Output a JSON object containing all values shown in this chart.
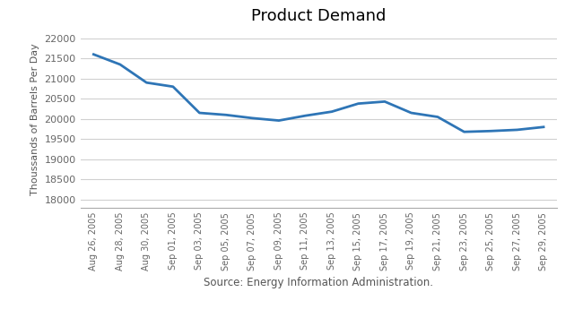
{
  "title": "Product Demand",
  "xlabel": "Source: Energy Information Administration.",
  "ylabel": "Thoussands of Barrels Per Day",
  "line_color": "#2E75B6",
  "line_width": 2.0,
  "background_color": "#ffffff",
  "grid_color": "#d0d0d0",
  "ylim": [
    17800,
    22200
  ],
  "yticks": [
    18000,
    18500,
    19000,
    19500,
    20000,
    20500,
    21000,
    21500,
    22000
  ],
  "x_labels": [
    "Aug 26, 2005",
    "Aug 28, 2005",
    "Aug 30, 2005",
    "Sep 01, 2005",
    "Sep 03, 2005",
    "Sep 05, 2005",
    "Sep 07, 2005",
    "Sep 09, 2005",
    "Sep 11, 2005",
    "Sep 13, 2005",
    "Sep 15, 2005",
    "Sep 17, 2005",
    "Sep 19, 2005",
    "Sep 21, 2005",
    "Sep 23, 2005",
    "Sep 25, 2005",
    "Sep 27, 2005",
    "Sep 29, 2005"
  ],
  "y_values": [
    21600,
    21350,
    20900,
    20800,
    20150,
    20100,
    20020,
    19960,
    20080,
    20180,
    20380,
    20430,
    20150,
    20050,
    19680,
    19700,
    19730,
    19800
  ]
}
